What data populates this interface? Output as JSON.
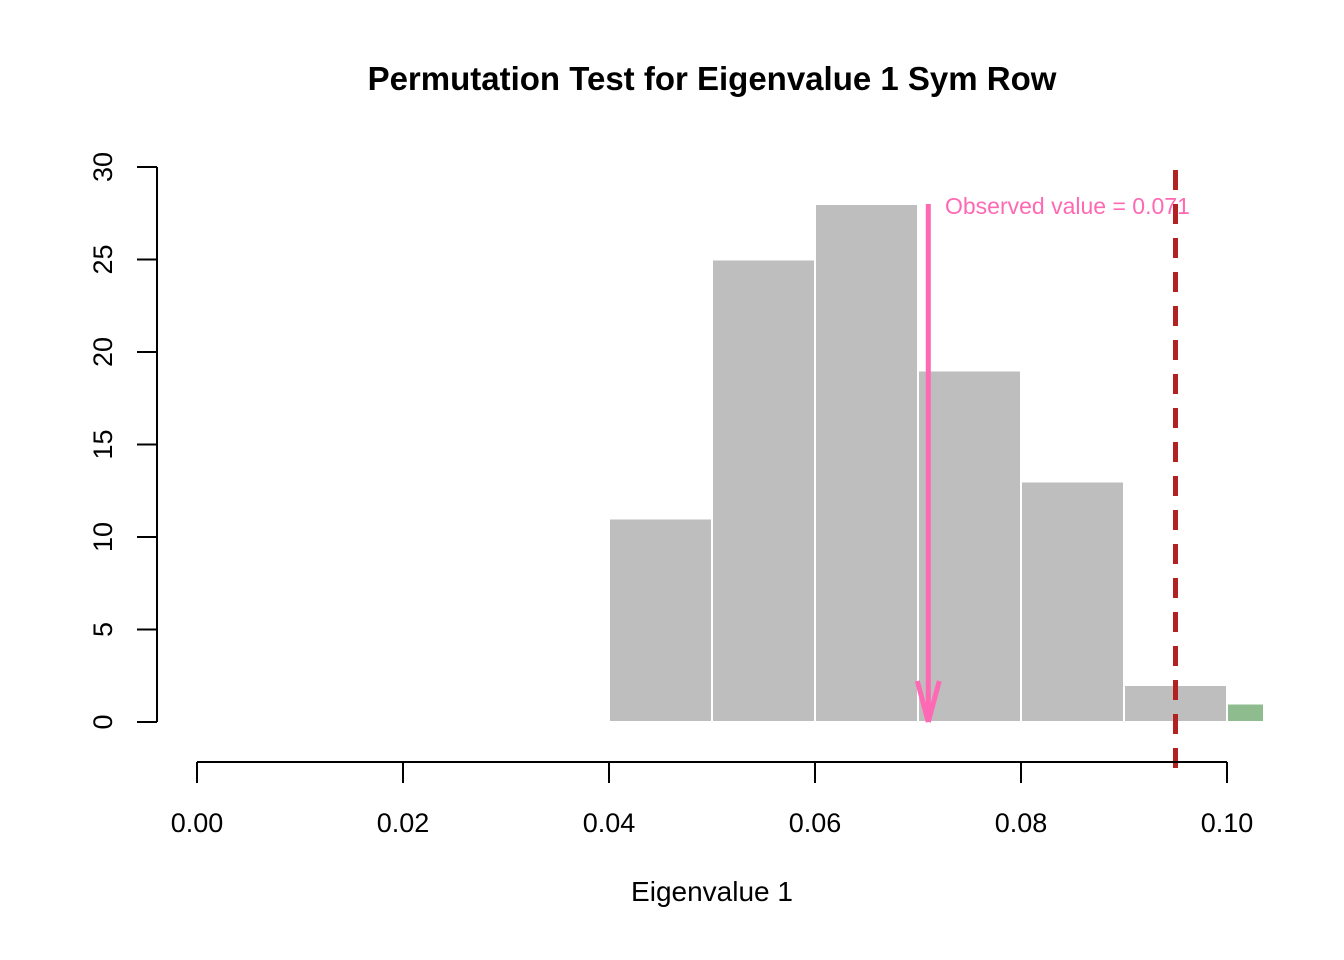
{
  "chart_data": {
    "type": "bar",
    "subtype": "histogram",
    "title": "Permutation Test for Eigenvalue 1 Sym Row",
    "xlabel": "Eigenvalue 1",
    "ylabel": "",
    "xlim": [
      0.0,
      0.104
    ],
    "ylim": [
      0,
      30
    ],
    "grid": false,
    "legend": "none",
    "bin_width": 0.01,
    "bins": [
      {
        "from": 0.0,
        "to": 0.01,
        "count": 0,
        "color": "bar"
      },
      {
        "from": 0.01,
        "to": 0.02,
        "count": 0,
        "color": "bar"
      },
      {
        "from": 0.02,
        "to": 0.03,
        "count": 0,
        "color": "bar"
      },
      {
        "from": 0.03,
        "to": 0.04,
        "count": 0,
        "color": "bar"
      },
      {
        "from": 0.04,
        "to": 0.05,
        "count": 11,
        "color": "bar"
      },
      {
        "from": 0.05,
        "to": 0.06,
        "count": 25,
        "color": "bar"
      },
      {
        "from": 0.06,
        "to": 0.07,
        "count": 28,
        "color": "bar"
      },
      {
        "from": 0.07,
        "to": 0.08,
        "count": 19,
        "color": "bar"
      },
      {
        "from": 0.08,
        "to": 0.09,
        "count": 13,
        "color": "bar"
      },
      {
        "from": 0.09,
        "to": 0.1,
        "count": 2,
        "color": "bar"
      },
      {
        "from": 0.1,
        "to": 0.11,
        "count": 1,
        "color": "significant"
      }
    ],
    "x_ticks": [
      0.0,
      0.02,
      0.04,
      0.06,
      0.08,
      0.1
    ],
    "x_tick_labels": [
      "0.00",
      "0.02",
      "0.04",
      "0.06",
      "0.08",
      "0.10"
    ],
    "y_ticks": [
      0,
      5,
      10,
      15,
      20,
      25,
      30
    ],
    "y_tick_labels": [
      "0",
      "5",
      "10",
      "15",
      "20",
      "25",
      "30"
    ],
    "observed": {
      "value": 0.071,
      "label": "Observed value = 0.071",
      "arrow_top_count": 28,
      "arrow_bottom_count": 0
    },
    "threshold_line": {
      "x": 0.095,
      "style": "dashed"
    },
    "colors": {
      "bar": "#BEBEBE",
      "bar_border": "#FFFFFF",
      "significant": "#8FBC8F",
      "observed": "#FF69B4",
      "threshold": "#B22222",
      "axis": "#000000",
      "background": "#FFFFFF"
    }
  }
}
